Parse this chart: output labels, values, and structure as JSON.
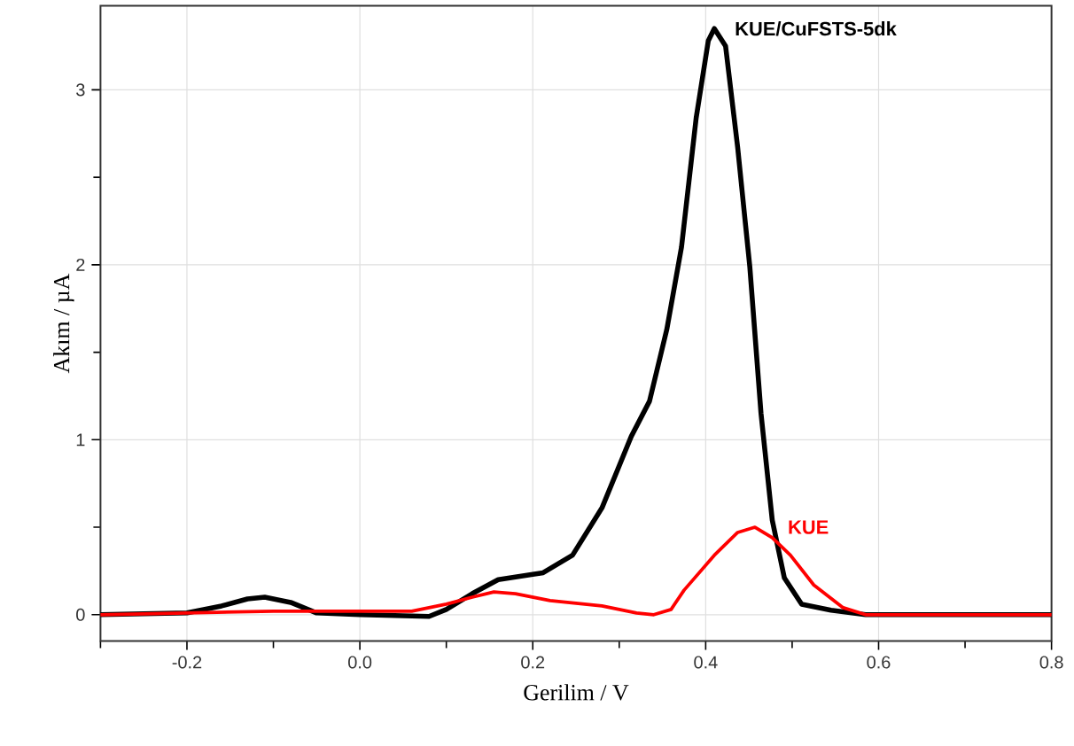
{
  "chart_data": {
    "type": "line",
    "xlabel": "Gerilim / V",
    "ylabel": "Akım / µA",
    "xlim": [
      -0.3,
      0.8
    ],
    "ylim": [
      -0.15,
      3.48
    ],
    "xticks": [
      {
        "value": -0.3,
        "label": null
      },
      -0.2,
      {
        "value": -0.1,
        "label": null
      },
      {
        "value": 0,
        "label": "0.0"
      },
      {
        "value": 0.1,
        "label": null
      },
      0.2,
      {
        "value": 0.3,
        "label": null
      },
      0.4,
      {
        "value": 0.5,
        "label": null
      },
      0.6,
      {
        "value": 0.7,
        "label": null
      },
      0.8
    ],
    "yticks": [
      0,
      {
        "value": 0.5,
        "label": null
      },
      1,
      {
        "value": 1.5,
        "label": null
      },
      2,
      {
        "value": 2.5,
        "label": null
      },
      3
    ],
    "grid": true,
    "legend": false,
    "marker": "none",
    "line_style": "solid",
    "series": [
      {
        "name": "KUE/CuFSTS-5dk",
        "color": "#000000",
        "x": [
          -0.3,
          -0.2,
          -0.16,
          -0.13,
          -0.11,
          -0.08,
          -0.05,
          0.0,
          0.08,
          0.1,
          0.13,
          0.16,
          0.2,
          0.212,
          0.246,
          0.28,
          0.314,
          0.335,
          0.355,
          0.372,
          0.389,
          0.403,
          0.41,
          0.423,
          0.437,
          0.451,
          0.464,
          0.477,
          0.491,
          0.511,
          0.545,
          0.585,
          0.8
        ],
        "values": [
          0,
          0.01,
          0.05,
          0.09,
          0.1,
          0.07,
          0.01,
          0,
          -0.01,
          0.03,
          0.12,
          0.2,
          0.23,
          0.24,
          0.34,
          0.61,
          1.02,
          1.22,
          1.63,
          2.1,
          2.84,
          3.28,
          3.35,
          3.25,
          2.67,
          1.99,
          1.15,
          0.54,
          0.21,
          0.06,
          0.025,
          0,
          0
        ]
      },
      {
        "name": "KUE",
        "color": "#ff0000",
        "x": [
          -0.3,
          -0.2,
          -0.1,
          0.0,
          0.06,
          0.1,
          0.13,
          0.155,
          0.18,
          0.22,
          0.28,
          0.32,
          0.34,
          0.36,
          0.375,
          0.41,
          0.437,
          0.457,
          0.477,
          0.498,
          0.525,
          0.559,
          0.585,
          0.8
        ],
        "values": [
          0,
          0.01,
          0.02,
          0.02,
          0.02,
          0.06,
          0.1,
          0.13,
          0.12,
          0.08,
          0.05,
          0.01,
          0,
          0.03,
          0.14,
          0.34,
          0.47,
          0.5,
          0.44,
          0.34,
          0.17,
          0.04,
          0,
          0
        ]
      }
    ]
  }
}
